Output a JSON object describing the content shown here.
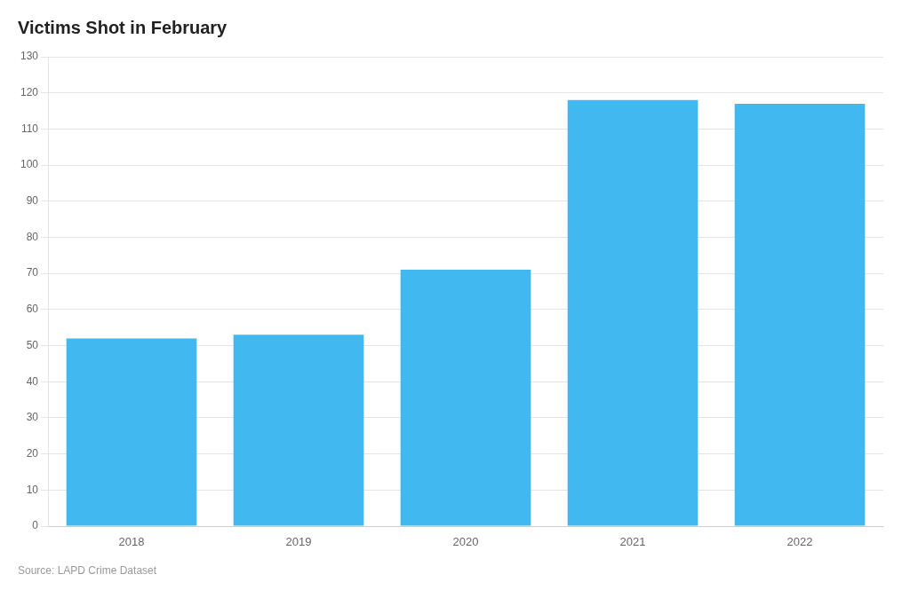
{
  "chart_data": {
    "type": "bar",
    "title": "Victims Shot in February",
    "source": "Source: LAPD Crime Dataset",
    "categories": [
      "2018",
      "2019",
      "2020",
      "2021",
      "2022"
    ],
    "values": [
      52,
      53,
      71,
      118,
      117
    ],
    "color": "#41b8f0",
    "ylim": [
      0,
      130
    ],
    "yticks": [
      0,
      10,
      20,
      30,
      40,
      50,
      60,
      70,
      80,
      90,
      100,
      110,
      120,
      130
    ],
    "grid": true
  }
}
